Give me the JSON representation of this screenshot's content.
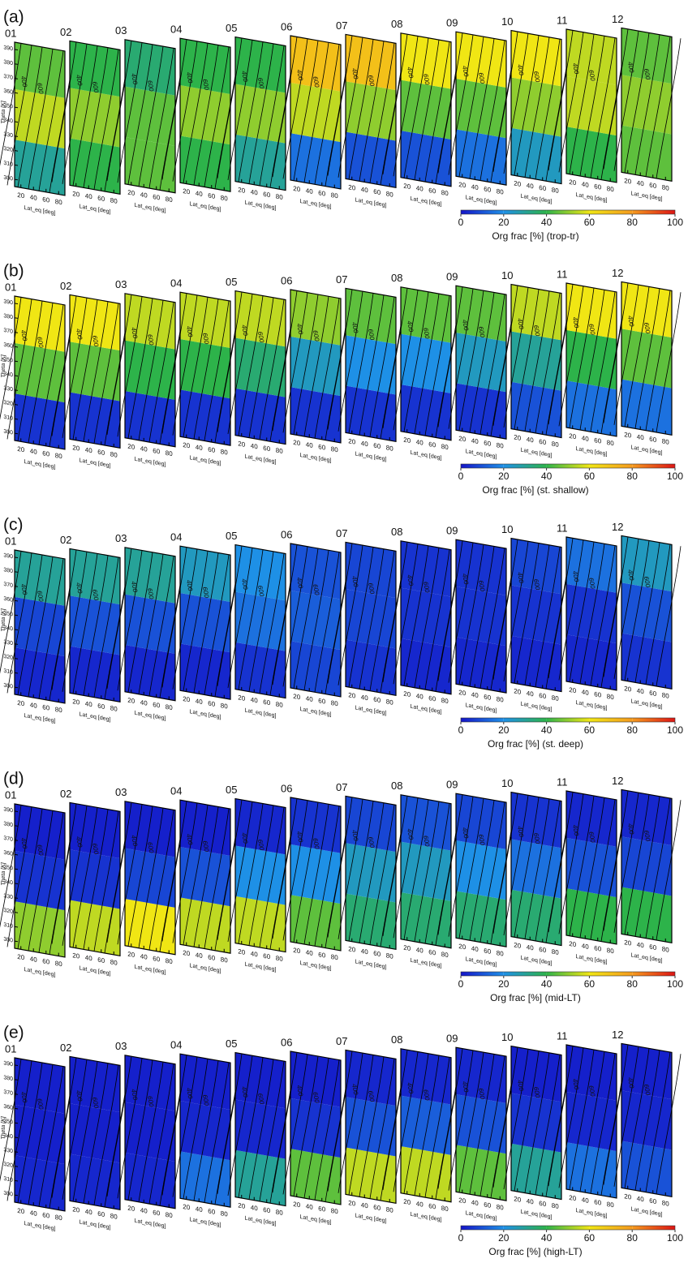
{
  "chart_data": [
    {
      "type": "contour",
      "title": "(a)",
      "colorbar_label": "Org frac [%] (trop-tr)",
      "categories": [
        "01",
        "02",
        "03",
        "04",
        "05",
        "06",
        "07",
        "08",
        "09",
        "10",
        "11",
        "12"
      ],
      "levels": [
        310,
        345,
        380
      ],
      "values": [
        [
          30,
          55,
          45
        ],
        [
          40,
          50,
          40
        ],
        [
          45,
          45,
          35
        ],
        [
          40,
          50,
          40
        ],
        [
          30,
          50,
          40
        ],
        [
          15,
          55,
          70
        ],
        [
          10,
          50,
          70
        ],
        [
          10,
          45,
          60
        ],
        [
          15,
          45,
          60
        ],
        [
          25,
          50,
          60
        ],
        [
          40,
          55,
          55
        ],
        [
          45,
          50,
          45
        ]
      ],
      "ylabel": "Theta [K]",
      "xlabel": "Lat_eq [deg]",
      "ylim": [
        295,
        395
      ],
      "yticks": [
        300,
        310,
        320,
        330,
        340,
        350,
        360,
        370,
        380,
        390
      ],
      "xlim": [
        10,
        90
      ],
      "xticks": [
        20,
        40,
        60,
        80
      ],
      "contour_labels": [
        "400",
        "600"
      ],
      "clim": [
        0,
        100
      ],
      "cticks": [
        0,
        20,
        40,
        60,
        80,
        100
      ],
      "colors": [
        "#1414c8",
        "#1e90e6",
        "#2db34a",
        "#f0e614",
        "#f59a1e",
        "#dc1414"
      ]
    },
    {
      "type": "contour",
      "title": "(b)",
      "colorbar_label": "Org frac [%] (st. shallow)",
      "categories": [
        "01",
        "02",
        "03",
        "04",
        "05",
        "06",
        "07",
        "08",
        "09",
        "10",
        "11",
        "12"
      ],
      "levels": [
        310,
        345,
        380
      ],
      "values": [
        [
          5,
          45,
          60
        ],
        [
          5,
          45,
          60
        ],
        [
          5,
          40,
          55
        ],
        [
          5,
          40,
          55
        ],
        [
          5,
          35,
          55
        ],
        [
          5,
          25,
          50
        ],
        [
          5,
          20,
          45
        ],
        [
          5,
          20,
          45
        ],
        [
          5,
          25,
          45
        ],
        [
          10,
          30,
          55
        ],
        [
          15,
          40,
          60
        ],
        [
          15,
          45,
          60
        ]
      ],
      "ylabel": "Theta [K]",
      "xlabel": "Lat_eq [deg]",
      "ylim": [
        295,
        395
      ],
      "yticks": [
        300,
        310,
        320,
        330,
        340,
        350,
        360,
        370,
        380,
        390
      ],
      "xlim": [
        10,
        90
      ],
      "xticks": [
        20,
        40,
        60,
        80
      ],
      "contour_labels": [
        "400",
        "600"
      ],
      "clim": [
        0,
        100
      ],
      "cticks": [
        0,
        20,
        40,
        60,
        80,
        100
      ],
      "colors": [
        "#1414c8",
        "#1e90e6",
        "#2db34a",
        "#f0e614",
        "#f59a1e",
        "#dc1414"
      ]
    },
    {
      "type": "contour",
      "title": "(c)",
      "colorbar_label": "Org frac [%] (st. deep)",
      "categories": [
        "01",
        "02",
        "03",
        "04",
        "05",
        "06",
        "07",
        "08",
        "09",
        "10",
        "11",
        "12"
      ],
      "levels": [
        310,
        345,
        380
      ],
      "values": [
        [
          3,
          8,
          30
        ],
        [
          3,
          10,
          30
        ],
        [
          3,
          10,
          30
        ],
        [
          3,
          10,
          25
        ],
        [
          5,
          15,
          20
        ],
        [
          8,
          12,
          10
        ],
        [
          5,
          8,
          8
        ],
        [
          3,
          5,
          5
        ],
        [
          3,
          5,
          5
        ],
        [
          3,
          5,
          8
        ],
        [
          3,
          5,
          15
        ],
        [
          5,
          10,
          25
        ]
      ],
      "ylabel": "Theta [K]",
      "xlabel": "Lat_eq [deg]",
      "ylim": [
        295,
        395
      ],
      "yticks": [
        300,
        310,
        320,
        330,
        340,
        350,
        360,
        370,
        380,
        390
      ],
      "xlim": [
        10,
        90
      ],
      "xticks": [
        20,
        40,
        60,
        80
      ],
      "contour_labels": [
        "400",
        "600"
      ],
      "clim": [
        0,
        100
      ],
      "cticks": [
        0,
        20,
        40,
        60,
        80,
        100
      ],
      "colors": [
        "#1414c8",
        "#1e90e6",
        "#2db34a",
        "#f0e614",
        "#f59a1e",
        "#dc1414"
      ]
    },
    {
      "type": "contour",
      "title": "(d)",
      "colorbar_label": "Org frac [%] (mid-LT)",
      "categories": [
        "01",
        "02",
        "03",
        "04",
        "05",
        "06",
        "07",
        "08",
        "09",
        "10",
        "11",
        "12"
      ],
      "levels": [
        310,
        345,
        380
      ],
      "values": [
        [
          50,
          5,
          2
        ],
        [
          55,
          5,
          2
        ],
        [
          60,
          8,
          2
        ],
        [
          55,
          10,
          2
        ],
        [
          55,
          20,
          3
        ],
        [
          45,
          20,
          5
        ],
        [
          35,
          25,
          8
        ],
        [
          35,
          25,
          10
        ],
        [
          35,
          20,
          8
        ],
        [
          35,
          15,
          5
        ],
        [
          40,
          10,
          3
        ],
        [
          40,
          8,
          3
        ]
      ],
      "ylabel": "Theta [K]",
      "xlabel": "Lat_eq [deg]",
      "ylim": [
        295,
        395
      ],
      "yticks": [
        300,
        310,
        320,
        330,
        340,
        350,
        360,
        370,
        380,
        390
      ],
      "xlim": [
        10,
        90
      ],
      "xticks": [
        20,
        40,
        60,
        80
      ],
      "contour_labels": [
        "400",
        "600"
      ],
      "clim": [
        0,
        100
      ],
      "cticks": [
        0,
        20,
        40,
        60,
        80,
        100
      ],
      "colors": [
        "#1414c8",
        "#1e90e6",
        "#2db34a",
        "#f0e614",
        "#f59a1e",
        "#dc1414"
      ]
    },
    {
      "type": "contour",
      "title": "(e)",
      "colorbar_label": "Org frac [%] (high-LT)",
      "categories": [
        "01",
        "02",
        "03",
        "04",
        "05",
        "06",
        "07",
        "08",
        "09",
        "10",
        "11",
        "12"
      ],
      "levels": [
        310,
        345,
        380
      ],
      "values": [
        [
          3,
          2,
          2
        ],
        [
          3,
          2,
          2
        ],
        [
          3,
          2,
          2
        ],
        [
          15,
          3,
          2
        ],
        [
          30,
          3,
          2
        ],
        [
          45,
          5,
          2
        ],
        [
          55,
          10,
          3
        ],
        [
          55,
          12,
          3
        ],
        [
          45,
          10,
          3
        ],
        [
          30,
          5,
          2
        ],
        [
          15,
          3,
          2
        ],
        [
          10,
          3,
          2
        ]
      ],
      "ylabel": "Theta [K]",
      "xlabel": "Lat_eq [deg]",
      "ylim": [
        295,
        395
      ],
      "yticks": [
        300,
        310,
        320,
        330,
        340,
        350,
        360,
        370,
        380,
        390
      ],
      "xlim": [
        10,
        90
      ],
      "xticks": [
        20,
        40,
        60,
        80
      ],
      "contour_labels": [
        "400",
        "600"
      ],
      "clim": [
        0,
        100
      ],
      "cticks": [
        0,
        20,
        40,
        60,
        80,
        100
      ],
      "colors": [
        "#1414c8",
        "#1e90e6",
        "#2db34a",
        "#f0e614",
        "#f59a1e",
        "#dc1414"
      ]
    }
  ]
}
